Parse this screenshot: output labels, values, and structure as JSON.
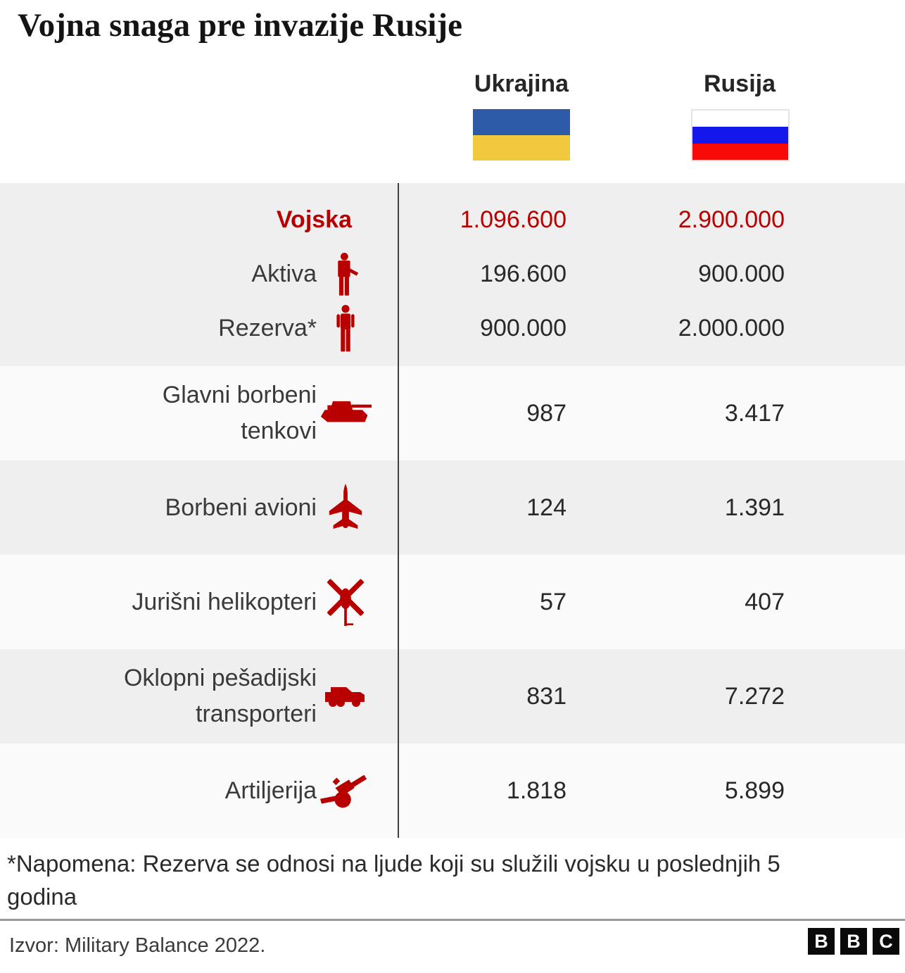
{
  "title": "Vojna snaga pre invazije Rusije",
  "columns": {
    "ukraine": "Ukrajina",
    "russia": "Rusija"
  },
  "flags": {
    "ukraine": {
      "top": "#2d5ba7",
      "bottom": "#f2c83e"
    },
    "russia": {
      "top": "#ffffff",
      "middle": "#1317ec",
      "bottom": "#f80b06"
    }
  },
  "accent_color": "#b80000",
  "rows": [
    {
      "label": "Vojska",
      "icon": null,
      "ukraine": "1.096.600",
      "russia": "2.900.000",
      "highlight": true
    },
    {
      "label": "Aktiva",
      "icon": "soldier",
      "ukraine": "196.600",
      "russia": "900.000"
    },
    {
      "label": "Rezerva*",
      "icon": "person",
      "ukraine": "900.000",
      "russia": "2.000.000"
    },
    {
      "label": "Glavni borbeni tenkovi",
      "icon": "tank",
      "ukraine": "987",
      "russia": "3.417"
    },
    {
      "label": "Borbeni avioni",
      "icon": "jet",
      "ukraine": "124",
      "russia": "1.391"
    },
    {
      "label": "Jurišni helikopteri",
      "icon": "helicopter",
      "ukraine": "57",
      "russia": "407"
    },
    {
      "label": "Oklopni pešadijski transporteri",
      "icon": "apc",
      "ukraine": "831",
      "russia": "7.272"
    },
    {
      "label": "Artiljerija",
      "icon": "artillery",
      "ukraine": "1.818",
      "russia": "5.899"
    }
  ],
  "footnote": "*Napomena: Rezerva se odnosi na ljude koji su služili vojsku u poslednjih 5 godina",
  "source": "Izvor: Military Balance 2022.",
  "logo_letters": [
    "B",
    "B",
    "C"
  ],
  "chart_data": {
    "type": "table",
    "title": "Vojna snaga pre invazije Rusije",
    "categories": [
      "Vojska",
      "Aktiva",
      "Rezerva*",
      "Glavni borbeni tenkovi",
      "Borbeni avioni",
      "Jurišni helikopteri",
      "Oklopni pešadijski transporteri",
      "Artiljerija"
    ],
    "series": [
      {
        "name": "Ukrajina",
        "values": [
          1096600,
          196600,
          900000,
          987,
          124,
          57,
          831,
          1818
        ]
      },
      {
        "name": "Rusija",
        "values": [
          2900000,
          900000,
          2000000,
          3417,
          1391,
          407,
          7272,
          5899
        ]
      }
    ],
    "note": "*Napomena: Rezerva se odnosi na ljude koji su služili vojsku u poslednjih 5 godina",
    "source": "Izvor: Military Balance 2022."
  }
}
